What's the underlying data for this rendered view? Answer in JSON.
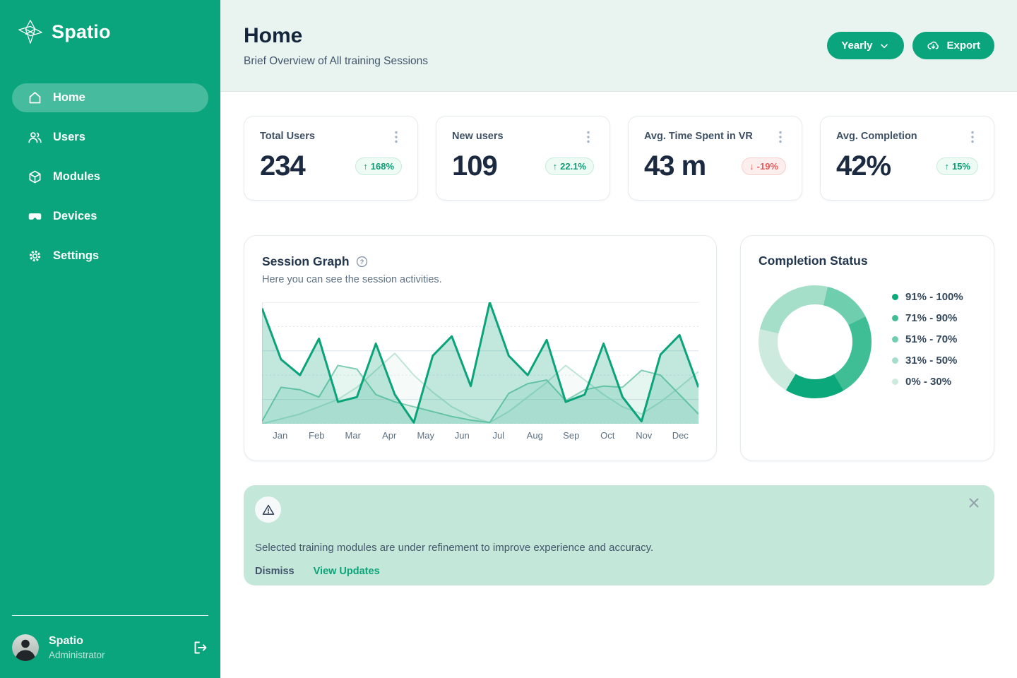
{
  "app_name": "Spatio",
  "sidebar": {
    "logo_text": "Spatio",
    "items": [
      {
        "label": "Home",
        "icon": "home",
        "active": true
      },
      {
        "label": "Users",
        "icon": "users",
        "active": false
      },
      {
        "label": "Modules",
        "icon": "modules",
        "active": false
      },
      {
        "label": "Devices",
        "icon": "devices",
        "active": false
      },
      {
        "label": "Settings",
        "icon": "settings",
        "active": false
      }
    ],
    "profile": {
      "name": "Spatio",
      "role": "Administrator"
    }
  },
  "header": {
    "title": "Home",
    "subtitle": "Brief Overview of All training Sessions",
    "period_button_label": "Yearly",
    "export_button_label": "Export"
  },
  "stats": [
    {
      "title": "Total Users",
      "value": "234",
      "change": "168%",
      "direction": "up"
    },
    {
      "title": "New users",
      "value": "109",
      "change": "22.1%",
      "direction": "up"
    },
    {
      "title": "Avg. Time Spent in VR",
      "value": "43 m",
      "change": "-19%",
      "direction": "down"
    },
    {
      "title": "Avg. Completion",
      "value": "42%",
      "change": "15%",
      "direction": "up"
    }
  ],
  "session_graph": {
    "title": "Session Graph",
    "subtitle": "Here you can see the session activities."
  },
  "completion": {
    "title": "Completion Status",
    "legend": [
      {
        "label": "91% - 100%",
        "color": "#0aa87b"
      },
      {
        "label": "71% - 90%",
        "color": "#3fbd95"
      },
      {
        "label": "51% - 70%",
        "color": "#6fceae"
      },
      {
        "label": "31% - 50%",
        "color": "#a5dfc9"
      },
      {
        "label": "0% - 30%",
        "color": "#cdeade"
      }
    ]
  },
  "banner": {
    "message": "Selected training modules are under refinement to improve experience and accuracy.",
    "dismiss_label": "Dismiss",
    "view_updates_label": "View Updates"
  },
  "colors": {
    "brand_green": "#0aa57c",
    "header_bg": "#e9f3ef",
    "banner_bg": "#c3e7d8",
    "badge_up": "#0f9d76",
    "badge_down": "#e25c5c",
    "dark_text": "#1b2a40"
  },
  "chart_data": [
    {
      "type": "area",
      "title": "Session Graph",
      "x_labels": [
        "Jan",
        "Feb",
        "Mar",
        "Apr",
        "May",
        "Jun",
        "Jul",
        "Aug",
        "Sep",
        "Oct",
        "Nov",
        "Dec"
      ],
      "ylim": [
        0,
        100
      ],
      "grid": true,
      "series": [
        {
          "name": "sessions-primary",
          "color": "#0ba37a",
          "line_width": 3,
          "fill_opacity": 0.25,
          "values": [
            95,
            53,
            40,
            70,
            18,
            22,
            66,
            24,
            1,
            56,
            72,
            31,
            100,
            56,
            40,
            69,
            18,
            24,
            66,
            22,
            2,
            57,
            73,
            30
          ]
        },
        {
          "name": "sessions-secondary",
          "color": "#7fcdb2",
          "line_width": 2,
          "fill_opacity": 0.2,
          "values": [
            2,
            30,
            28,
            22,
            48,
            45,
            24,
            18,
            14,
            10,
            6,
            3,
            1,
            25,
            33,
            36,
            19,
            28,
            31,
            30,
            44,
            40,
            24,
            8
          ]
        },
        {
          "name": "sessions-tertiary",
          "color": "#bfe5d7",
          "line_width": 2,
          "fill_opacity": 0.14,
          "values": [
            0,
            4,
            8,
            14,
            20,
            30,
            44,
            58,
            40,
            26,
            14,
            6,
            1,
            10,
            22,
            34,
            48,
            36,
            24,
            14,
            8,
            18,
            30,
            43
          ]
        }
      ]
    },
    {
      "type": "pie",
      "donut": true,
      "title": "Completion Status",
      "start_angle_deg": 13,
      "legend_position": "right",
      "segments": [
        {
          "label": "51% - 70%",
          "value": 14,
          "color": "#6fceae"
        },
        {
          "label": "71% - 90%",
          "value": 24,
          "color": "#3fbd95"
        },
        {
          "label": "91% - 100%",
          "value": 17,
          "color": "#0aa87b"
        },
        {
          "label": "0% - 30%",
          "value": 20,
          "color": "#cdeade"
        },
        {
          "label": "31% - 50%",
          "value": 25,
          "color": "#a5dfc9"
        }
      ]
    }
  ]
}
